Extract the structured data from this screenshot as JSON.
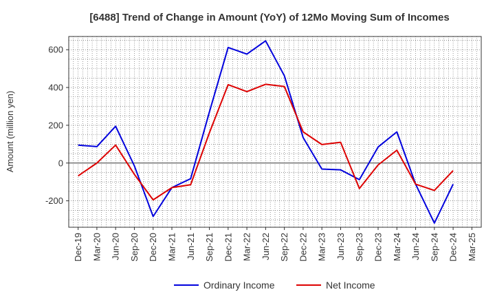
{
  "chart_data": {
    "type": "line",
    "title": "[6488]  Trend of Change in Amount (YoY) of 12Mo Moving Sum of Incomes",
    "xlabel": "",
    "ylabel": "Amount (million yen)",
    "ylim": [
      -340,
      670
    ],
    "yticks": [
      600,
      400,
      200,
      0,
      -200
    ],
    "categories": [
      "Dec-19",
      "Mar-20",
      "Jun-20",
      "Sep-20",
      "Dec-20",
      "Mar-21",
      "Jun-21",
      "Sep-21",
      "Dec-21",
      "Mar-22",
      "Jun-22",
      "Sep-22",
      "Dec-22",
      "Mar-23",
      "Jun-23",
      "Sep-23",
      "Dec-23",
      "Mar-24",
      "Jun-24",
      "Sep-24",
      "Dec-24",
      "Mar-25"
    ],
    "grid": true,
    "legend_position": "bottom",
    "series": [
      {
        "name": "Ordinary Income",
        "color": "#0000dd",
        "values": [
          95,
          87,
          195,
          -15,
          -283,
          -130,
          -83,
          270,
          612,
          577,
          647,
          462,
          135,
          -32,
          -36,
          -88,
          85,
          165,
          -112,
          -318,
          -112,
          null
        ]
      },
      {
        "name": "Net Income",
        "color": "#dd0000",
        "values": [
          -68,
          0,
          95,
          -60,
          -195,
          -130,
          -115,
          160,
          415,
          378,
          417,
          405,
          165,
          98,
          110,
          -135,
          -10,
          68,
          -112,
          -145,
          -40,
          null
        ]
      }
    ]
  }
}
